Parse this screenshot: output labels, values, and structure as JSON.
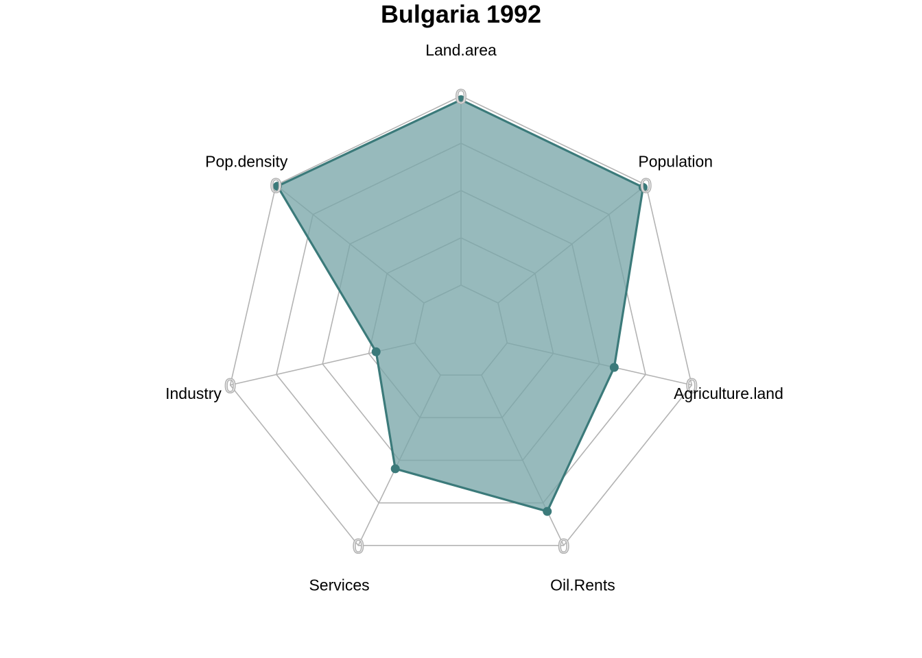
{
  "chart_data": {
    "type": "radar",
    "title": "Bulgaria 1992",
    "axes": [
      "Land.area",
      "Population",
      "Agriculture.land",
      "Oil.Rents",
      "Services",
      "Industry",
      "Pop.density"
    ],
    "axis_tick_label": "0",
    "range": [
      0,
      1
    ],
    "grid_levels": 5,
    "series": [
      {
        "values": [
          0.98,
          0.98,
          0.58,
          0.8,
          0.55,
          0.21,
          0.99
        ]
      }
    ],
    "colors": {
      "series_line": "#3b7a7a",
      "series_fill": "#7aa7a9",
      "series_fill_opacity": 0.78,
      "grid": "#b3b3b3"
    }
  }
}
